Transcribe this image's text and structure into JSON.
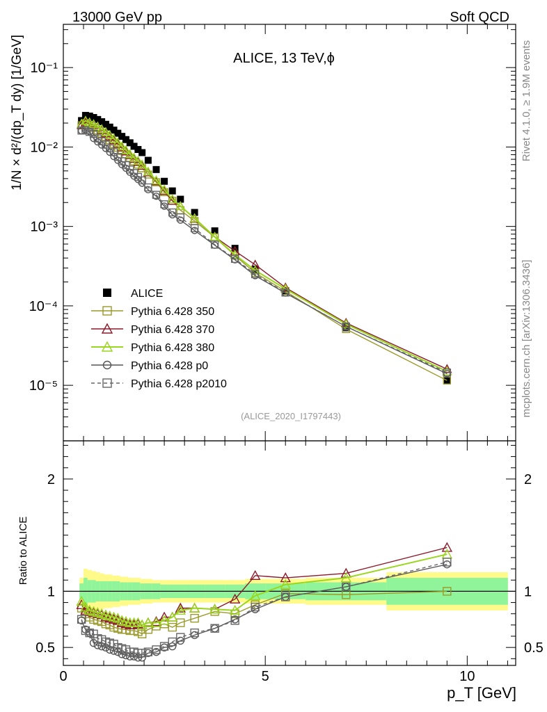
{
  "header": {
    "energy_label": "13000 GeV pp",
    "process_label": "Soft QCD",
    "rivet_label": "Rivet 4.1.0, ≥ 1.9M events",
    "site_label": "mcplots.cern.ch [arXiv:1306.3436]"
  },
  "colors": {
    "alice": "#000000",
    "p350": "#9a9a2a",
    "p370": "#8b1a2a",
    "p380": "#9ad61e",
    "p0": "#555555",
    "p2010": "#666666",
    "band_inner": "#90f59a",
    "band_outer": "#fffa8a"
  },
  "chart_data": [
    {
      "type": "scatter",
      "panel": "main",
      "title": "ALICE, 13 TeV,ϕ",
      "analysis_id": "(ALICE_2020_I1797443)",
      "ylabel": "1/N × d²/(dp_T dy) [1/GeV]",
      "yscale": "log",
      "xlim": [
        0,
        11.2
      ],
      "ylim": [
        2e-06,
        0.35
      ],
      "y_tick_labels": [
        "10⁻⁵",
        "10⁻⁴",
        "10⁻³",
        "10⁻²",
        "10⁻¹"
      ],
      "x": [
        0.45,
        0.55,
        0.65,
        0.75,
        0.85,
        0.95,
        1.05,
        1.15,
        1.25,
        1.35,
        1.45,
        1.55,
        1.65,
        1.75,
        1.85,
        1.95,
        2.1,
        2.3,
        2.5,
        2.7,
        2.9,
        3.25,
        3.75,
        4.25,
        4.75,
        5.5,
        7.0,
        9.5
      ],
      "series": [
        {
          "name": "ALICE",
          "key": "alice",
          "style": "filled-square",
          "values": [
            0.0215,
            0.025,
            0.0245,
            0.0235,
            0.0222,
            0.0208,
            0.0193,
            0.0178,
            0.0163,
            0.0149,
            0.0136,
            0.0124,
            0.0113,
            0.0102,
            0.0093,
            0.0085,
            0.0068,
            0.0052,
            0.0037,
            0.0028,
            0.0022,
            0.0015,
            0.00088,
            0.00053,
            0.00029,
            0.000155,
            5.3e-05,
            1.15e-05
          ]
        },
        {
          "name": "Pythia 6.428 350",
          "key": "p350",
          "style": "open-square",
          "values": [
            0.0187,
            0.0199,
            0.0189,
            0.0174,
            0.0162,
            0.0148,
            0.0134,
            0.0122,
            0.0109,
            0.0098,
            0.0089,
            0.0081,
            0.0073,
            0.0066,
            0.006,
            0.0054,
            0.0045,
            0.0036,
            0.0027,
            0.0021,
            0.0016,
            0.00117,
            0.00073,
            0.00043,
            0.00026,
            0.000153,
            5.1e-05,
            1.15e-05
          ]
        },
        {
          "name": "Pythia 6.428 370",
          "key": "p370",
          "style": "open-triangle",
          "values": [
            0.0189,
            0.0204,
            0.02,
            0.0191,
            0.0178,
            0.0164,
            0.0149,
            0.0136,
            0.0122,
            0.011,
            0.0099,
            0.0088,
            0.0079,
            0.0071,
            0.0065,
            0.0058,
            0.0048,
            0.0037,
            0.0028,
            0.0021,
            0.0018,
            0.00125,
            0.00074,
            0.00049,
            0.00033,
            0.00017,
            6.1e-05,
            1.6e-05
          ]
        },
        {
          "name": "Pythia 6.428 380",
          "key": "p380",
          "style": "open-triangle",
          "values": [
            0.0196,
            0.0214,
            0.0204,
            0.0194,
            0.0181,
            0.0168,
            0.0154,
            0.0141,
            0.0127,
            0.0114,
            0.0102,
            0.0091,
            0.0081,
            0.0073,
            0.0067,
            0.006,
            0.0049,
            0.0038,
            0.0029,
            0.0022,
            0.0018,
            0.00127,
            0.00074,
            0.00044,
            0.00028,
            0.000164,
            5.9e-05,
            1.5e-05
          ]
        },
        {
          "name": "Pythia 6.428 p0",
          "key": "p0",
          "style": "open-circle",
          "values": [
            0.016,
            0.0165,
            0.0156,
            0.0128,
            0.0116,
            0.0106,
            0.0096,
            0.0086,
            0.0076,
            0.0068,
            0.006,
            0.0054,
            0.0048,
            0.0043,
            0.0039,
            0.0035,
            0.0029,
            0.0024,
            0.0018,
            0.0014,
            0.0012,
            0.00089,
            0.00058,
            0.00038,
            0.00024,
            0.000145,
            5.5e-05,
            1.4e-05
          ]
        },
        {
          "name": "Pythia 6.428 p2010",
          "key": "p2010",
          "style": "open-square-dashed",
          "values": [
            0.0161,
            0.0163,
            0.0155,
            0.0146,
            0.0128,
            0.0118,
            0.0107,
            0.0096,
            0.0086,
            0.0075,
            0.0066,
            0.0059,
            0.0052,
            0.0047,
            0.0042,
            0.0038,
            0.0031,
            0.0025,
            0.0019,
            0.0015,
            0.0013,
            0.00095,
            0.00059,
            0.00039,
            0.00025,
            0.000147,
            5.5e-05,
            1.45e-05
          ]
        }
      ]
    },
    {
      "type": "line",
      "panel": "ratio",
      "ylabel": "Ratio to ALICE",
      "xlabel": "p_T [GeV]",
      "xlim": [
        0,
        11.2
      ],
      "ylim": [
        0.34,
        2.34
      ],
      "x_tick_labels": [
        "0",
        "5",
        "10"
      ],
      "y_tick_labels": [
        "0.5",
        "1",
        "2"
      ],
      "x": [
        0.45,
        0.55,
        0.65,
        0.75,
        0.85,
        0.95,
        1.05,
        1.15,
        1.25,
        1.35,
        1.45,
        1.55,
        1.65,
        1.75,
        1.85,
        1.95,
        2.1,
        2.3,
        2.5,
        2.7,
        2.9,
        3.25,
        3.75,
        4.25,
        4.75,
        5.5,
        7.0,
        9.5
      ],
      "reference_band": {
        "edges": [
          0.4,
          0.5,
          0.6,
          0.7,
          0.8,
          0.9,
          1.0,
          1.1,
          1.2,
          1.3,
          1.4,
          1.5,
          1.6,
          1.7,
          1.8,
          1.9,
          2.0,
          2.2,
          2.4,
          2.6,
          2.8,
          3.0,
          3.5,
          4.0,
          4.5,
          5.0,
          6.0,
          8.0,
          11.0
        ],
        "inner_half_width": [
          0.07,
          0.12,
          0.1,
          0.1,
          0.09,
          0.09,
          0.09,
          0.09,
          0.09,
          0.09,
          0.08,
          0.08,
          0.08,
          0.08,
          0.08,
          0.07,
          0.07,
          0.07,
          0.06,
          0.06,
          0.06,
          0.06,
          0.06,
          0.06,
          0.07,
          0.07,
          0.08,
          0.12
        ],
        "outer_half_width": [
          0.12,
          0.2,
          0.19,
          0.18,
          0.17,
          0.16,
          0.15,
          0.15,
          0.14,
          0.14,
          0.13,
          0.13,
          0.12,
          0.12,
          0.12,
          0.11,
          0.11,
          0.1,
          0.1,
          0.1,
          0.1,
          0.1,
          0.1,
          0.1,
          0.11,
          0.11,
          0.12,
          0.17
        ]
      },
      "series": [
        {
          "name": "Pythia 6.428 350",
          "key": "p350",
          "style": "open-square",
          "values": [
            0.85,
            0.8,
            0.77,
            0.75,
            0.74,
            0.73,
            0.71,
            0.7,
            0.68,
            0.67,
            0.66,
            0.66,
            0.65,
            0.65,
            0.64,
            0.62,
            0.66,
            0.69,
            0.71,
            0.68,
            0.72,
            0.76,
            0.82,
            0.8,
            0.88,
            0.98,
            0.97,
            1.0
          ]
        },
        {
          "name": "Pythia 6.428 370",
          "key": "p370",
          "style": "open-triangle",
          "values": [
            0.88,
            0.83,
            0.82,
            0.81,
            0.8,
            0.79,
            0.77,
            0.76,
            0.75,
            0.74,
            0.72,
            0.71,
            0.7,
            0.7,
            0.71,
            0.7,
            0.72,
            0.73,
            0.77,
            0.77,
            0.85,
            0.85,
            0.84,
            0.93,
            1.14,
            1.12,
            1.16,
            1.39
          ]
        },
        {
          "name": "Pythia 6.428 380",
          "key": "p380",
          "style": "open-triangle",
          "values": [
            0.91,
            0.86,
            0.83,
            0.82,
            0.81,
            0.8,
            0.79,
            0.78,
            0.77,
            0.76,
            0.74,
            0.73,
            0.72,
            0.72,
            0.72,
            0.7,
            0.72,
            0.72,
            0.74,
            0.77,
            0.83,
            0.85,
            0.84,
            0.83,
            0.96,
            1.06,
            1.12,
            1.33
          ]
        },
        {
          "name": "Pythia 6.428 p0",
          "key": "p0",
          "style": "open-circle",
          "values": [
            0.74,
            0.66,
            0.63,
            0.54,
            0.52,
            0.51,
            0.5,
            0.48,
            0.47,
            0.46,
            0.44,
            0.43,
            0.42,
            0.42,
            0.41,
            0.41,
            0.45,
            0.46,
            0.5,
            0.51,
            0.56,
            0.61,
            0.67,
            0.75,
            0.84,
            0.95,
            1.04,
            1.24
          ]
        },
        {
          "name": "Pythia 6.428 p2010",
          "key": "p2010",
          "style": "open-square-dashed",
          "values": [
            0.75,
            0.65,
            0.63,
            0.62,
            0.58,
            0.57,
            0.55,
            0.54,
            0.53,
            0.5,
            0.49,
            0.48,
            0.46,
            0.46,
            0.45,
            0.45,
            0.46,
            0.48,
            0.51,
            0.55,
            0.59,
            0.63,
            0.67,
            0.74,
            0.86,
            0.95,
            1.04,
            1.26
          ]
        }
      ]
    }
  ]
}
